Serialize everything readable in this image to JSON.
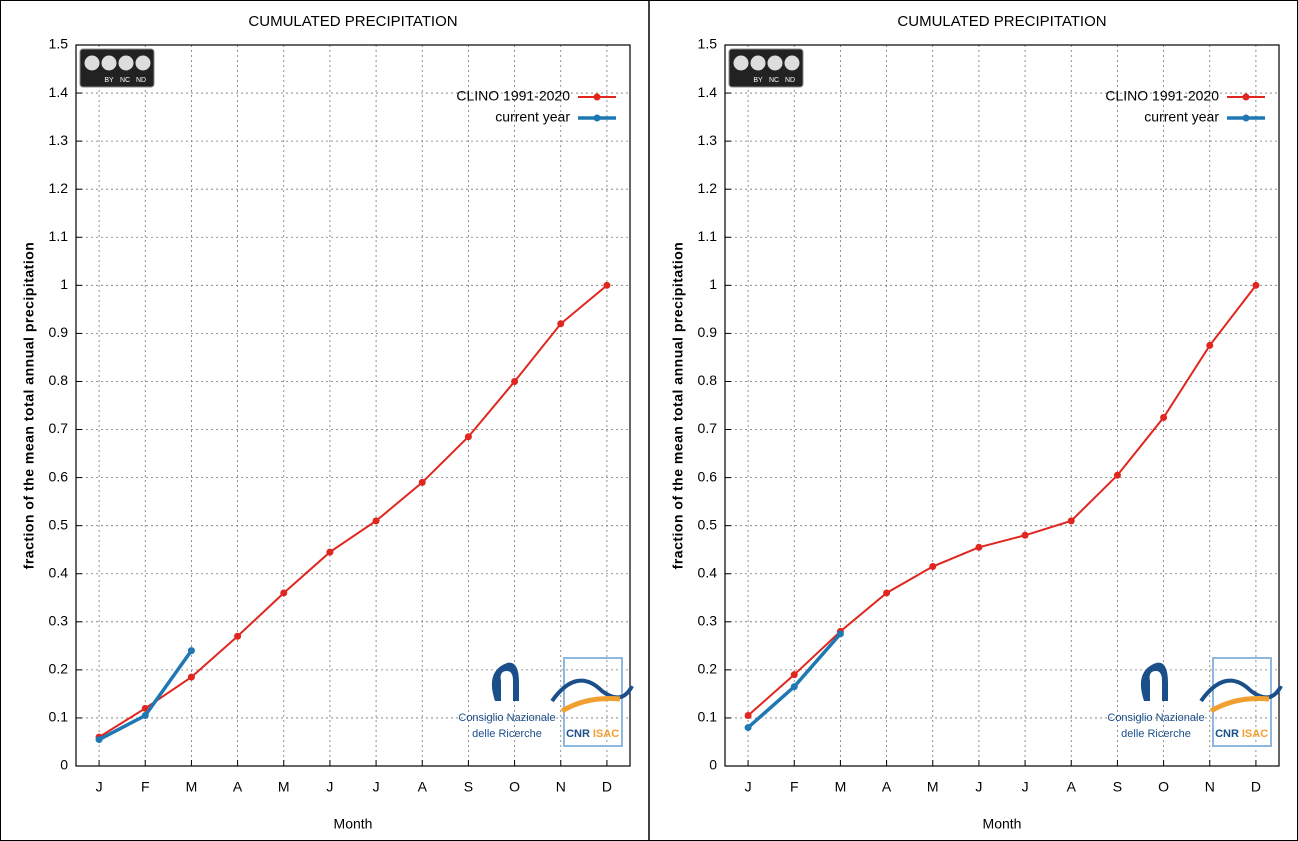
{
  "chart_data": [
    {
      "type": "line",
      "title": "CUMULATED PRECIPITATION",
      "x_label": "Month",
      "y_label": "fraction of the mean total annual precipitation",
      "categories": [
        "J",
        "F",
        "M",
        "A",
        "M",
        "J",
        "J",
        "A",
        "S",
        "O",
        "N",
        "D"
      ],
      "series": [
        {
          "name": "CLINO 1991-2020",
          "color": "#e0261f",
          "values": [
            0.06,
            0.12,
            0.185,
            0.27,
            0.36,
            0.445,
            0.51,
            0.59,
            0.685,
            0.8,
            0.92,
            1.0
          ]
        },
        {
          "name": "current year",
          "color": "#1f78b4",
          "values": [
            0.055,
            0.105,
            0.24,
            null,
            null,
            null,
            null,
            null,
            null,
            null,
            null,
            null
          ]
        }
      ],
      "ylim": [
        0,
        1.5
      ],
      "yticks": [
        0,
        0.1,
        0.2,
        0.3,
        0.4,
        0.5,
        0.6,
        0.7,
        0.8,
        0.9,
        1,
        1.1,
        1.2,
        1.3,
        1.4,
        1.5
      ],
      "grid": true,
      "legend": "top-right",
      "license_labels": [
        "BY",
        "NC",
        "ND"
      ],
      "logo_text": [
        "Consiglio Nazionale",
        "delle Ricerche",
        "CNR",
        "ISAC"
      ]
    },
    {
      "type": "line",
      "title": "CUMULATED PRECIPITATION",
      "x_label": "Month",
      "y_label": "fraction of the mean total annual precipitation",
      "categories": [
        "J",
        "F",
        "M",
        "A",
        "M",
        "J",
        "J",
        "A",
        "S",
        "O",
        "N",
        "D"
      ],
      "series": [
        {
          "name": "CLINO 1991-2020",
          "color": "#e0261f",
          "values": [
            0.105,
            0.19,
            0.28,
            0.36,
            0.415,
            0.455,
            0.48,
            0.51,
            0.605,
            0.725,
            0.875,
            1.0
          ]
        },
        {
          "name": "current year",
          "color": "#1f78b4",
          "values": [
            0.08,
            0.165,
            0.275,
            null,
            null,
            null,
            null,
            null,
            null,
            null,
            null,
            null
          ]
        }
      ],
      "ylim": [
        0,
        1.5
      ],
      "yticks": [
        0,
        0.1,
        0.2,
        0.3,
        0.4,
        0.5,
        0.6,
        0.7,
        0.8,
        0.9,
        1,
        1.1,
        1.2,
        1.3,
        1.4,
        1.5
      ],
      "grid": true,
      "legend": "top-right",
      "license_labels": [
        "BY",
        "NC",
        "ND"
      ],
      "logo_text": [
        "Consiglio Nazionale",
        "delle Ricerche",
        "CNR",
        "ISAC"
      ]
    }
  ]
}
